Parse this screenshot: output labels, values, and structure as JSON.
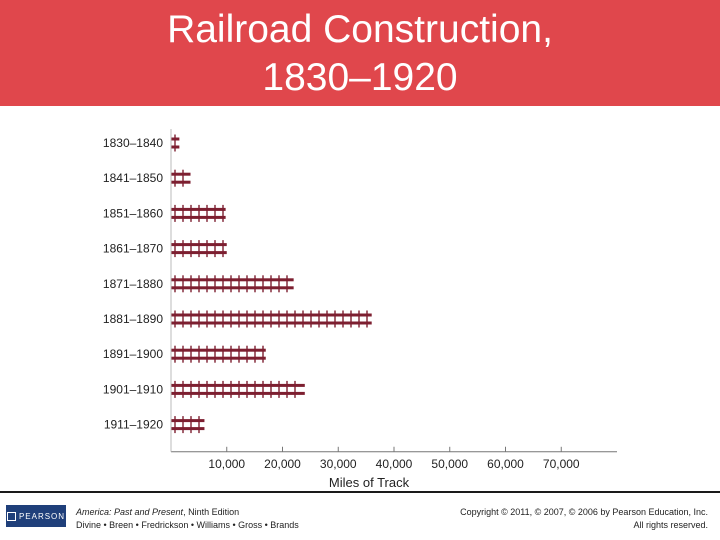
{
  "slide": {
    "title_line1": "Railroad Construction,",
    "title_line2": "1830–1920",
    "header_color": "#e0474c"
  },
  "chart_data": {
    "type": "bar",
    "orientation": "horizontal",
    "categories": [
      "1830–1840",
      "1841–1850",
      "1851–1860",
      "1861–1870",
      "1871–1880",
      "1881–1890",
      "1891–1900",
      "1901–1910",
      "1911–1920"
    ],
    "values": [
      1500,
      3500,
      9800,
      10000,
      22000,
      36000,
      17000,
      24000,
      6000
    ],
    "xlabel": "Miles of Track",
    "x_ticks": [
      10000,
      20000,
      30000,
      40000,
      50000,
      60000,
      70000
    ],
    "x_tick_labels": [
      "10,000",
      "20,000",
      "30,000",
      "40,000",
      "50,000",
      "60,000",
      "70,000"
    ],
    "xlim": [
      0,
      80000
    ],
    "grid": "vertical tick marks only",
    "bar_color": "#7d1f30"
  },
  "footer": {
    "logo_text": "PEARSON",
    "book_title": "America: Past and Present",
    "book_edition": ", Ninth Edition",
    "authors": "Divine • Breen • Fredrickson • Williams • Gross • Brands",
    "copyright": "Copyright © 2011, © 2007, © 2006 by Pearson Education, Inc.",
    "rights": "All rights reserved."
  }
}
